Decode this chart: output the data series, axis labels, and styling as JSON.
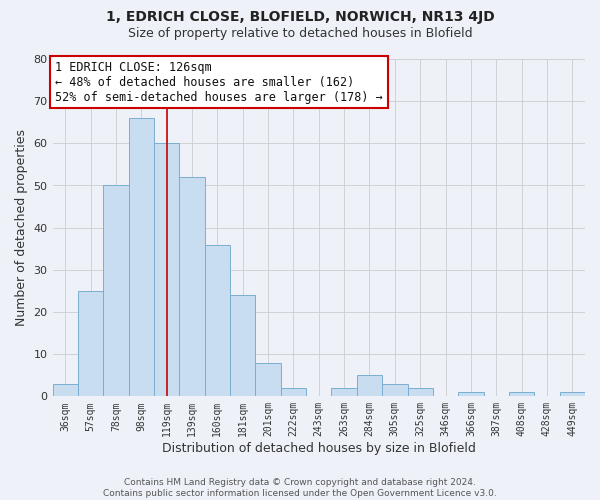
{
  "title": "1, EDRICH CLOSE, BLOFIELD, NORWICH, NR13 4JD",
  "subtitle": "Size of property relative to detached houses in Blofield",
  "xlabel": "Distribution of detached houses by size in Blofield",
  "ylabel": "Number of detached properties",
  "bar_labels": [
    "36sqm",
    "57sqm",
    "78sqm",
    "98sqm",
    "119sqm",
    "139sqm",
    "160sqm",
    "181sqm",
    "201sqm",
    "222sqm",
    "243sqm",
    "263sqm",
    "284sqm",
    "305sqm",
    "325sqm",
    "346sqm",
    "366sqm",
    "387sqm",
    "408sqm",
    "428sqm",
    "449sqm"
  ],
  "bar_heights": [
    3,
    25,
    50,
    66,
    60,
    52,
    36,
    24,
    8,
    2,
    0,
    2,
    5,
    3,
    2,
    0,
    1,
    0,
    1,
    0,
    1
  ],
  "bar_color": "#c8ddf0",
  "bar_edge_color": "#7aaed0",
  "vline_x_index": 4,
  "vline_color": "#cc0000",
  "annotation_line1": "1 EDRICH CLOSE: 126sqm",
  "annotation_line2": "← 48% of detached houses are smaller (162)",
  "annotation_line3": "52% of semi-detached houses are larger (178) →",
  "annotation_box_color": "#ffffff",
  "annotation_box_edge": "#cc0000",
  "ylim": [
    0,
    80
  ],
  "yticks": [
    0,
    10,
    20,
    30,
    40,
    50,
    60,
    70,
    80
  ],
  "footer": "Contains HM Land Registry data © Crown copyright and database right 2024.\nContains public sector information licensed under the Open Government Licence v3.0.",
  "grid_color": "#cccccc",
  "background_color": "#eef2f8",
  "title_fontsize": 10,
  "subtitle_fontsize": 9
}
